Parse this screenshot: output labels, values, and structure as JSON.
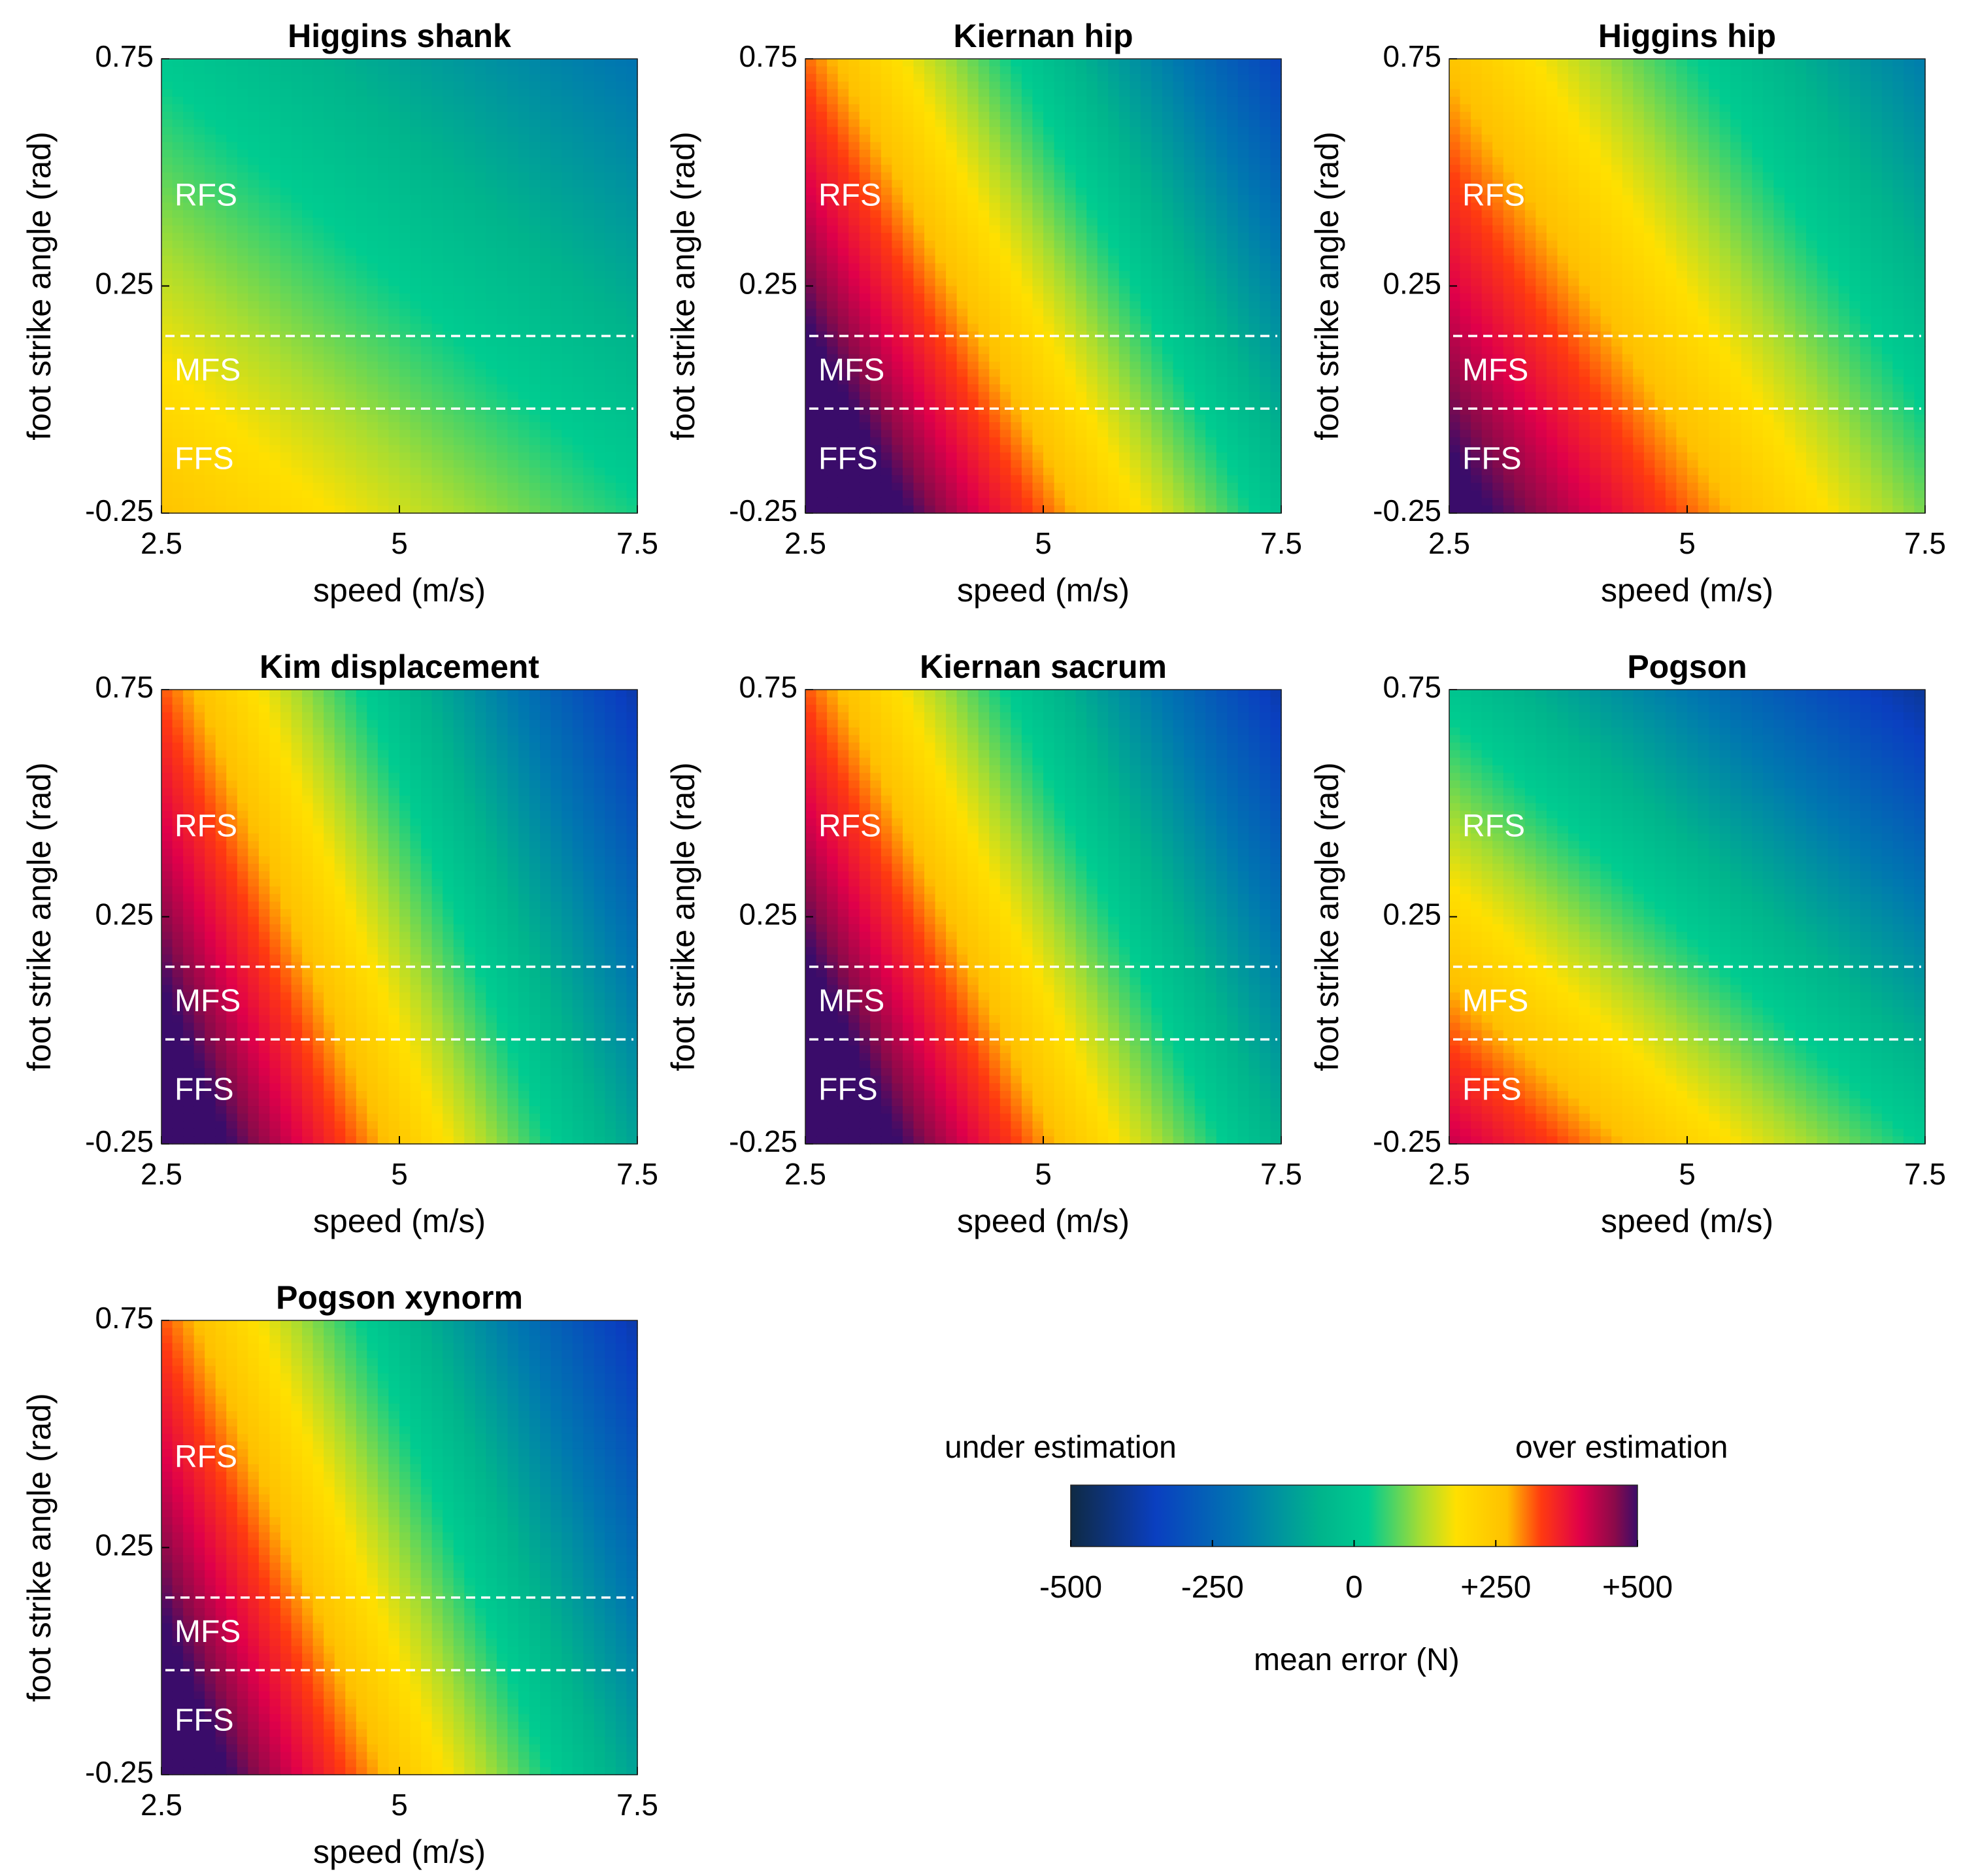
{
  "chart_data": {
    "type": "heatmap",
    "xlabel": "speed (m/s)",
    "ylabel": "foot strike angle (rad)",
    "xlim": [
      2.5,
      7.5
    ],
    "ylim": [
      -0.25,
      0.75
    ],
    "xticks": [
      "2.5",
      "5",
      "7.5"
    ],
    "yticks": [
      "0.75",
      "0.25",
      "-0.25"
    ],
    "strike_regions": [
      {
        "label": "RFS",
        "from": 0.14,
        "to": 0.75
      },
      {
        "label": "MFS",
        "from": -0.02,
        "to": 0.14
      },
      {
        "label": "FFS",
        "from": -0.25,
        "to": -0.02
      }
    ],
    "boundary_lines": [
      0.14,
      -0.02
    ],
    "color_range": [
      -500,
      500
    ],
    "panels": [
      {
        "title": "Higgins shank",
        "error_at_2_5_ms_neg025": 260,
        "d_per_speed": -45,
        "d_per_angle": -245
      },
      {
        "title": "Kiernan hip",
        "error_at_2_5_ms_neg025": 640,
        "d_per_speed": -130,
        "d_per_angle": -330
      },
      {
        "title": "Higgins hip",
        "error_at_2_5_ms_neg025": 540,
        "d_per_speed": -90,
        "d_per_angle": -280
      },
      {
        "title": "Kim displacement",
        "error_at_2_5_ms_neg025": 600,
        "d_per_speed": -140,
        "d_per_angle": -280
      },
      {
        "title": "Kiernan sacrum",
        "error_at_2_5_ms_neg025": 640,
        "d_per_speed": -140,
        "d_per_angle": -320
      },
      {
        "title": "Pogson",
        "error_at_2_5_ms_neg025": 420,
        "d_per_speed": -80,
        "d_per_angle": -420
      },
      {
        "title": "Pogson xynorm",
        "error_at_2_5_ms_neg025": 600,
        "d_per_speed": -140,
        "d_per_angle": -280
      }
    ],
    "colorbar": {
      "left_label": "under estimation",
      "right_label": "over estimation",
      "ticks": [
        "-500",
        "-250",
        "0",
        "+250",
        "+500"
      ],
      "tick_values": [
        -500,
        -250,
        0,
        250,
        500
      ],
      "title": "mean error (N)",
      "colors": [
        {
          "v": -500,
          "c": "#0f2a44"
        },
        {
          "v": -350,
          "c": "#0a3fc0"
        },
        {
          "v": -200,
          "c": "#0077b0"
        },
        {
          "v": -60,
          "c": "#00b48c"
        },
        {
          "v": 25,
          "c": "#00cc90"
        },
        {
          "v": 120,
          "c": "#aadd30"
        },
        {
          "v": 180,
          "c": "#ffe000"
        },
        {
          "v": 270,
          "c": "#ffc000"
        },
        {
          "v": 330,
          "c": "#ff3a10"
        },
        {
          "v": 400,
          "c": "#e0004a"
        },
        {
          "v": 460,
          "c": "#8a0a4a"
        },
        {
          "v": 500,
          "c": "#3a0c6a"
        }
      ]
    }
  }
}
